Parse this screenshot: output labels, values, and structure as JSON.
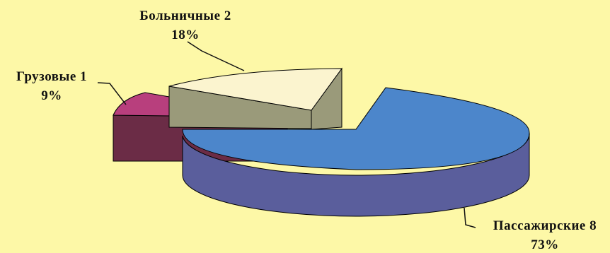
{
  "chart_data": {
    "type": "pie",
    "style": "3d-exploded",
    "title": "",
    "slices": [
      {
        "label": "Пассажирские",
        "value": 8,
        "percent": "73%",
        "color": "#4C86CB",
        "side_color": "#5A5E9C"
      },
      {
        "label": "Больничные",
        "value": 2,
        "percent": "18%",
        "color": "#FBF4CF",
        "side_color": "#9A9A7A"
      },
      {
        "label": "Грузовые",
        "value": 1,
        "percent": "9%",
        "color": "#B83F7D",
        "side_color": "#6B2C46"
      }
    ]
  },
  "colors": {
    "background": "#FDF8A7"
  }
}
